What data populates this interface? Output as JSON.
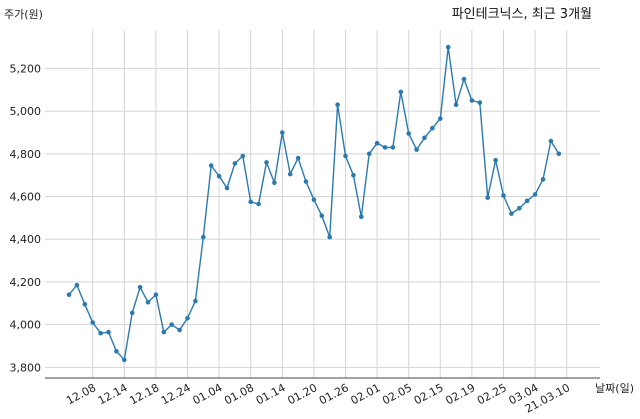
{
  "chart_data": {
    "type": "line",
    "title": "파인테크닉스, 최근 3개월",
    "ylabel": "주가(원)",
    "xlabel": "날짜(일)",
    "ylim": [
      3750,
      5380
    ],
    "yticks": [
      3800,
      4000,
      4200,
      4400,
      4600,
      4800,
      5000,
      5200
    ],
    "ytick_labels": [
      "3,800",
      "4,000",
      "4,200",
      "4,400",
      "4,600",
      "4,800",
      "5,000",
      "5,200"
    ],
    "xtick_labels": [
      "12.08",
      "12.14",
      "12.18",
      "12.24",
      "01.04",
      "01.08",
      "01.14",
      "01.20",
      "01.26",
      "02.01",
      "02.05",
      "02.15",
      "02.19",
      "02.25",
      "03.04",
      "21.03.10"
    ],
    "xtick_index": [
      3,
      7,
      11,
      15,
      19,
      23,
      27,
      31,
      35,
      39,
      43,
      47,
      51,
      55,
      59,
      63
    ],
    "grid": true,
    "color": "#2a7ab0",
    "series": [
      {
        "values": [
          4140,
          4185,
          4095,
          4010,
          3960,
          3965,
          3875,
          3835,
          4055,
          4175,
          4105,
          4140,
          3965,
          4000,
          3975,
          4030,
          4110,
          4410,
          4745,
          4695,
          4640,
          4755,
          4790,
          4575,
          4565,
          4760,
          4665,
          4900,
          4705,
          4780,
          4670,
          4585,
          4510,
          4410,
          5030,
          4790,
          4700,
          4505,
          4800,
          4850,
          4830,
          4830,
          5090,
          4895,
          4820,
          4875,
          4920,
          4965,
          5300,
          5030,
          5150,
          5050,
          5040,
          4595,
          4770,
          4605,
          4520,
          4545,
          4580,
          4610,
          4680,
          4860,
          4800
        ]
      }
    ]
  }
}
